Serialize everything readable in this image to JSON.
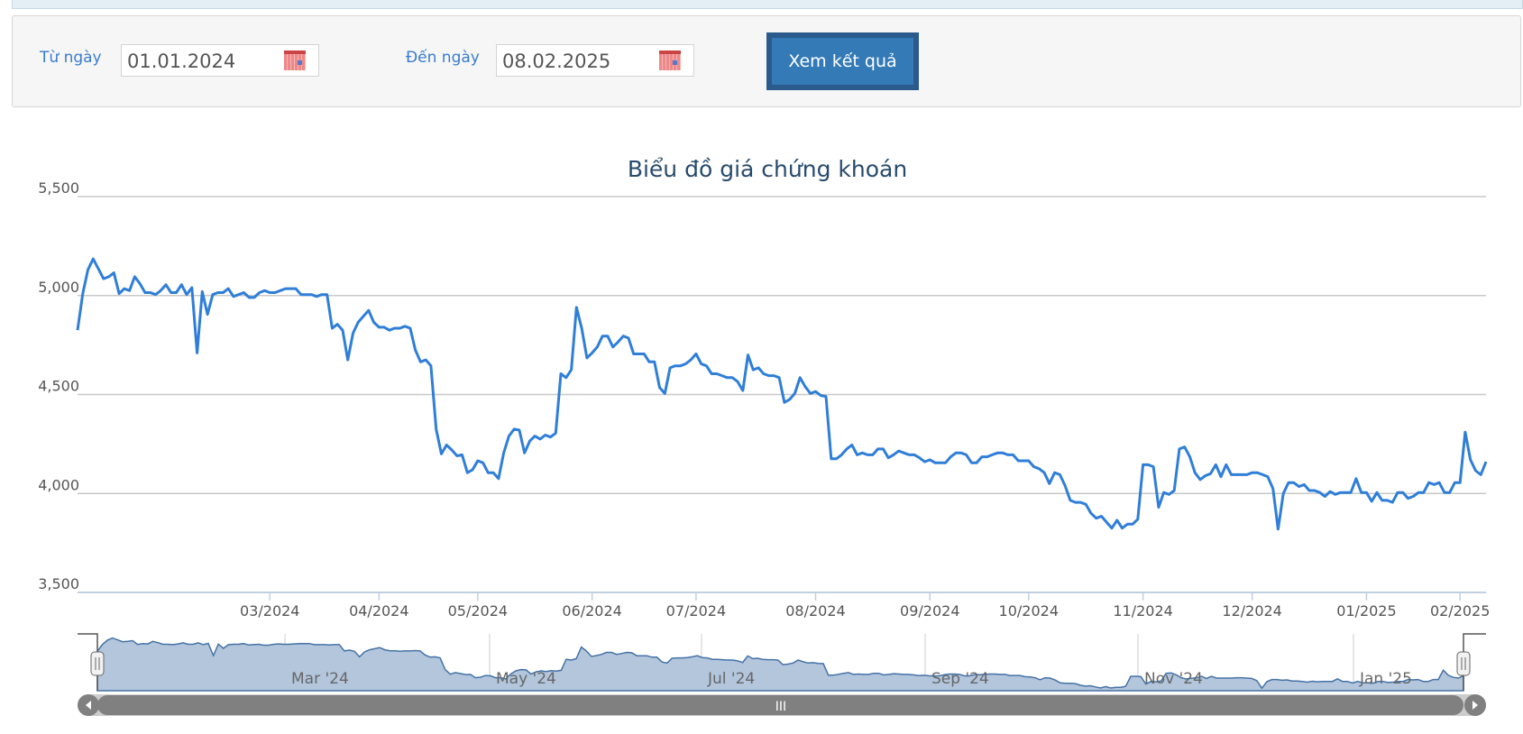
{
  "filter": {
    "from_label": "Từ ngày",
    "from_value": "01.01.2024",
    "to_label": "Đến ngày",
    "to_value": "08.02.2025",
    "submit_label": "Xem kết quả",
    "calendar_icon": "calendar-icon"
  },
  "chart_data": {
    "type": "line",
    "title": "Biểu đồ giá chứng khoán",
    "xlabel": "",
    "ylabel": "",
    "ylim": [
      3500,
      5500
    ],
    "yticks": [
      "3,500",
      "4,000",
      "4,500",
      "5,000",
      "5,500"
    ],
    "ytick_values": [
      3500,
      4000,
      4500,
      5000,
      5500
    ],
    "grid": true,
    "line_color": "#2f7ed8",
    "x_range": [
      "01.01.2024",
      "08.02.2025"
    ],
    "xticks": [
      {
        "label": "03/2024",
        "point_index": 37
      },
      {
        "label": "04/2024",
        "point_index": 58
      },
      {
        "label": "05/2024",
        "point_index": 77
      },
      {
        "label": "06/2024",
        "point_index": 99
      },
      {
        "label": "07/2024",
        "point_index": 119
      },
      {
        "label": "08/2024",
        "point_index": 142
      },
      {
        "label": "09/2024",
        "point_index": 164
      },
      {
        "label": "10/2024",
        "point_index": 183
      },
      {
        "label": "11/2024",
        "point_index": 205
      },
      {
        "label": "12/2024",
        "point_index": 226
      },
      {
        "label": "01/2025",
        "point_index": 248
      },
      {
        "label": "02/2025",
        "point_index": 266
      }
    ],
    "values": [
      4825,
      5010,
      5130,
      5185,
      5135,
      5085,
      5095,
      5115,
      5010,
      5035,
      5025,
      5095,
      5060,
      5015,
      5015,
      5005,
      5025,
      5055,
      5015,
      5015,
      5055,
      5005,
      5040,
      4710,
      5020,
      4905,
      5005,
      5015,
      5015,
      5035,
      4995,
      5005,
      5015,
      4990,
      4990,
      5015,
      5025,
      5015,
      5015,
      5025,
      5035,
      5035,
      5035,
      5005,
      5005,
      5005,
      4995,
      5005,
      5005,
      4835,
      4855,
      4825,
      4675,
      4810,
      4865,
      4895,
      4925,
      4865,
      4840,
      4840,
      4825,
      4835,
      4835,
      4845,
      4835,
      4725,
      4665,
      4675,
      4645,
      4325,
      4200,
      4245,
      4220,
      4190,
      4195,
      4105,
      4120,
      4165,
      4155,
      4105,
      4105,
      4075,
      4205,
      4290,
      4325,
      4320,
      4205,
      4265,
      4290,
      4275,
      4295,
      4285,
      4305,
      4605,
      4585,
      4625,
      4940,
      4835,
      4685,
      4710,
      4740,
      4795,
      4795,
      4740,
      4765,
      4795,
      4785,
      4705,
      4705,
      4705,
      4665,
      4665,
      4535,
      4505,
      4635,
      4645,
      4645,
      4655,
      4675,
      4705,
      4655,
      4645,
      4605,
      4605,
      4595,
      4585,
      4585,
      4565,
      4520,
      4700,
      4625,
      4635,
      4605,
      4595,
      4595,
      4585,
      4460,
      4475,
      4505,
      4585,
      4540,
      4505,
      4515,
      4495,
      4490,
      4175,
      4175,
      4195,
      4225,
      4245,
      4195,
      4205,
      4195,
      4195,
      4225,
      4225,
      4180,
      4195,
      4215,
      4205,
      4195,
      4195,
      4180,
      4160,
      4170,
      4155,
      4155,
      4155,
      4185,
      4205,
      4205,
      4195,
      4155,
      4155,
      4185,
      4185,
      4195,
      4205,
      4205,
      4195,
      4195,
      4165,
      4165,
      4165,
      4135,
      4125,
      4105,
      4050,
      4105,
      4095,
      4040,
      3965,
      3955,
      3955,
      3945,
      3900,
      3875,
      3885,
      3855,
      3825,
      3865,
      3825,
      3845,
      3845,
      3870,
      4145,
      4145,
      4135,
      3930,
      4005,
      3995,
      4015,
      4225,
      4235,
      4185,
      4105,
      4070,
      4090,
      4100,
      4145,
      4085,
      4145,
      4095,
      4095,
      4095,
      4095,
      4105,
      4105,
      4095,
      4085,
      4025,
      3820,
      4000,
      4055,
      4055,
      4035,
      4045,
      4015,
      4015,
      4005,
      3985,
      4010,
      3995,
      4005,
      4005,
      4005,
      4075,
      4005,
      4005,
      3960,
      4005,
      3965,
      3965,
      3955,
      4005,
      4005,
      3975,
      3985,
      4005,
      4005,
      4055,
      4045,
      4055,
      4005,
      4005,
      4055,
      4055,
      4310,
      4170,
      4115,
      4095,
      4160
    ]
  },
  "navigator": {
    "labels": [
      "Mar '24",
      "May '24",
      "Jul '24",
      "Sep '24",
      "Nov '24",
      "Jan '25"
    ],
    "fill_color": "#b3c6dc",
    "line_color": "#4572a7",
    "scrollbar_grip": "III"
  }
}
